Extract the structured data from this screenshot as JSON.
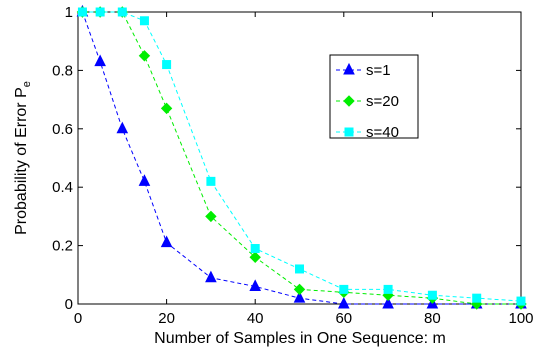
{
  "chart_data": {
    "type": "line",
    "title": "",
    "xlabel": "Number of Samples in One Sequence: m",
    "ylabel": "Probability of Error P",
    "ylabel_subscript": "e",
    "xlim": [
      0,
      100
    ],
    "ylim": [
      0,
      1
    ],
    "xticks": [
      0,
      20,
      40,
      60,
      80,
      100
    ],
    "yticks": [
      0,
      0.2,
      0.4,
      0.6,
      0.8,
      1
    ],
    "xtick_labels": [
      "0",
      "20",
      "40",
      "60",
      "80",
      "100"
    ],
    "ytick_labels": [
      "0",
      "0.2",
      "0.4",
      "0.6",
      "0.8",
      "1"
    ],
    "grid": false,
    "legend_position": "top-right",
    "series": [
      {
        "name": "s=1",
        "color": "#0000ff",
        "marker": "triangle",
        "x": [
          1,
          5,
          10,
          15,
          20,
          30,
          40,
          50,
          60,
          70,
          80,
          90,
          100
        ],
        "y": [
          1.0,
          0.83,
          0.6,
          0.42,
          0.21,
          0.09,
          0.06,
          0.02,
          0.0,
          0.0,
          0.0,
          0.0,
          0.0
        ]
      },
      {
        "name": "s=20",
        "color": "#00ee00",
        "marker": "diamond",
        "x": [
          1,
          5,
          10,
          15,
          20,
          30,
          40,
          50,
          60,
          70,
          80,
          90,
          100
        ],
        "y": [
          1.0,
          1.0,
          1.0,
          0.85,
          0.67,
          0.3,
          0.16,
          0.05,
          0.04,
          0.03,
          0.02,
          0.0,
          0.0
        ]
      },
      {
        "name": "s=40",
        "color": "#00ffff",
        "marker": "square",
        "x": [
          1,
          5,
          10,
          15,
          20,
          30,
          40,
          50,
          60,
          70,
          80,
          90,
          100
        ],
        "y": [
          1.0,
          1.0,
          1.0,
          0.97,
          0.82,
          0.42,
          0.19,
          0.12,
          0.05,
          0.05,
          0.03,
          0.02,
          0.01
        ]
      }
    ]
  }
}
